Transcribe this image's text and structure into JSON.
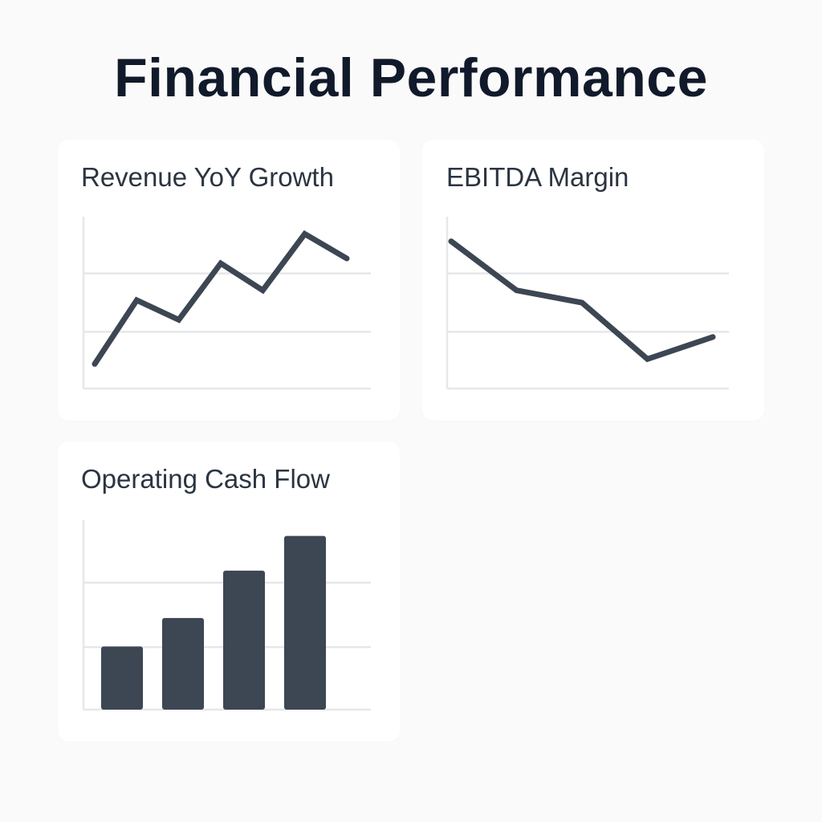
{
  "page": {
    "title": "Financial Performance"
  },
  "colors": {
    "background": "#fafafa",
    "card": "#ffffff",
    "ink": "#3d4653",
    "grid": "#e6e7e9",
    "title": "#111a2b"
  },
  "cards": [
    {
      "title": "Revenue YoY Growth"
    },
    {
      "title": "EBITDA Margin"
    },
    {
      "title": "Operating Cash Flow"
    }
  ],
  "chart_data": [
    {
      "type": "line",
      "title": "Revenue YoY Growth",
      "xlabel": "",
      "ylabel": "",
      "x": [
        1,
        2,
        3,
        4,
        5,
        6,
        7
      ],
      "values": [
        1.0,
        3.6,
        2.8,
        5.1,
        4.0,
        6.3,
        5.3
      ],
      "ylim": [
        0,
        7
      ],
      "grid": true,
      "tick_labels": false
    },
    {
      "type": "line",
      "title": "EBITDA Margin",
      "xlabel": "",
      "ylabel": "",
      "x": [
        1,
        2,
        3,
        4,
        5
      ],
      "values": [
        6.0,
        4.0,
        3.5,
        1.2,
        2.1
      ],
      "ylim": [
        0,
        7
      ],
      "grid": true,
      "tick_labels": false
    },
    {
      "type": "bar",
      "title": "Operating Cash Flow",
      "xlabel": "",
      "ylabel": "",
      "categories": [
        "",
        "",
        "",
        ""
      ],
      "values": [
        2.0,
        2.9,
        4.4,
        5.5
      ],
      "ylim": [
        0,
        6
      ],
      "grid": true,
      "tick_labels": false
    }
  ]
}
